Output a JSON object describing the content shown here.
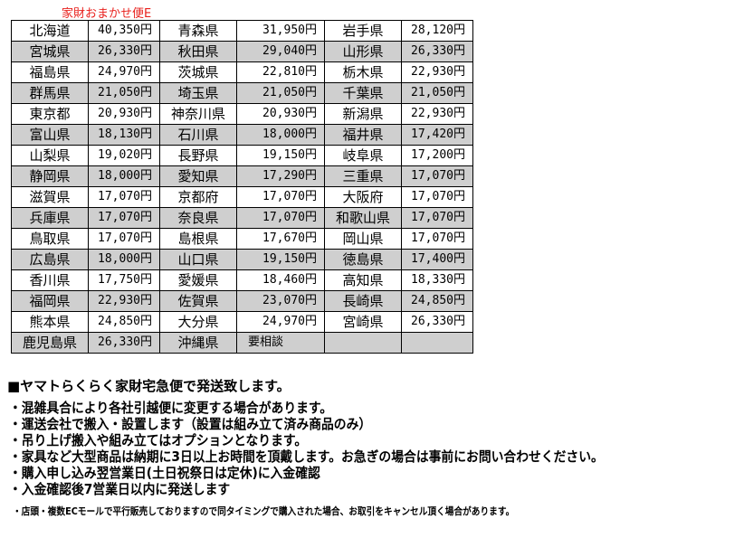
{
  "title": "家財おまかせ便E",
  "rows": [
    [
      [
        "北海道",
        "40,350円"
      ],
      [
        "青森県",
        "31,950円"
      ],
      [
        "岩手県",
        "28,120円"
      ]
    ],
    [
      [
        "宮城県",
        "26,330円"
      ],
      [
        "秋田県",
        "29,040円"
      ],
      [
        "山形県",
        "26,330円"
      ]
    ],
    [
      [
        "福島県",
        "24,970円"
      ],
      [
        "茨城県",
        "22,810円"
      ],
      [
        "栃木県",
        "22,930円"
      ]
    ],
    [
      [
        "群馬県",
        "21,050円"
      ],
      [
        "埼玉県",
        "21,050円"
      ],
      [
        "千葉県",
        "21,050円"
      ]
    ],
    [
      [
        "東京都",
        "20,930円"
      ],
      [
        "神奈川県",
        "20,930円"
      ],
      [
        "新潟県",
        "22,930円"
      ]
    ],
    [
      [
        "富山県",
        "18,130円"
      ],
      [
        "石川県",
        "18,000円"
      ],
      [
        "福井県",
        "17,420円"
      ]
    ],
    [
      [
        "山梨県",
        "19,020円"
      ],
      [
        "長野県",
        "19,150円"
      ],
      [
        "岐阜県",
        "17,200円"
      ]
    ],
    [
      [
        "静岡県",
        "18,000円"
      ],
      [
        "愛知県",
        "17,290円"
      ],
      [
        "三重県",
        "17,070円"
      ]
    ],
    [
      [
        "滋賀県",
        "17,070円"
      ],
      [
        "京都府",
        "17,070円"
      ],
      [
        "大阪府",
        "17,070円"
      ]
    ],
    [
      [
        "兵庫県",
        "17,070円"
      ],
      [
        "奈良県",
        "17,070円"
      ],
      [
        "和歌山県",
        "17,070円"
      ]
    ],
    [
      [
        "鳥取県",
        "17,070円"
      ],
      [
        "島根県",
        "17,670円"
      ],
      [
        "岡山県",
        "17,070円"
      ]
    ],
    [
      [
        "広島県",
        "18,000円"
      ],
      [
        "山口県",
        "19,150円"
      ],
      [
        "徳島県",
        "17,400円"
      ]
    ],
    [
      [
        "香川県",
        "17,750円"
      ],
      [
        "愛媛県",
        "18,460円"
      ],
      [
        "高知県",
        "18,330円"
      ]
    ],
    [
      [
        "福岡県",
        "22,930円"
      ],
      [
        "佐賀県",
        "23,070円"
      ],
      [
        "長崎県",
        "24,850円"
      ]
    ],
    [
      [
        "熊本県",
        "24,850円"
      ],
      [
        "大分県",
        "24,970円"
      ],
      [
        "宮崎県",
        "26,330円"
      ]
    ],
    [
      [
        "鹿児島県",
        "26,330円"
      ],
      [
        "沖縄県",
        "要相談"
      ],
      [
        "",
        ""
      ]
    ]
  ],
  "heading": "■ヤマトらくらく家財宅急便で発送致します。",
  "notes": [
    "・混雑具合により各社引越便に変更する場合があります。",
    "・運送会社で搬入・設置します（設置は組み立て済み商品のみ）",
    "・吊り上げ搬入や組み立てはオプションとなります。",
    "・家具など大型商品は納期に3日以上お時間を頂戴します。お急ぎの場合は事前にお問い合わせください。",
    "・購入申し込み翌営業日(土日祝祭日は定休)に入金確認",
    "・入金確認後7営業日以内に発送します"
  ],
  "footnote": "・店頭・複数ECモールで平行販売しておりますので同タイミングで購入された場合、お取引をキャンセル頂く場合があります。",
  "colors": {
    "title": "#e8201c",
    "stripe": "#cfcfcf"
  }
}
